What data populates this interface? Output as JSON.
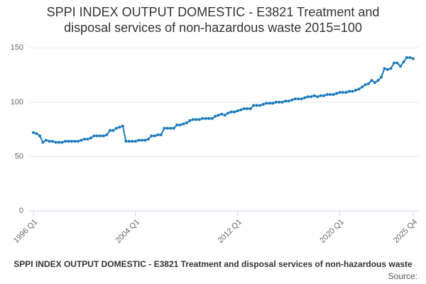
{
  "chart_data": {
    "type": "line",
    "title": "SPPI INDEX OUTPUT DOMESTIC - E3821 Treatment and disposal services of non-hazardous waste 2015=100",
    "source": "Source:",
    "categories": [
      "1996 Q1",
      null,
      null,
      null,
      null,
      null,
      null,
      null,
      null,
      null,
      null,
      null,
      null,
      null,
      null,
      null,
      null,
      null,
      null,
      null,
      null,
      null,
      null,
      null,
      null,
      null,
      null,
      null,
      null,
      null,
      null,
      null,
      "2004 Q1",
      null,
      null,
      null,
      null,
      null,
      null,
      null,
      null,
      null,
      null,
      null,
      null,
      null,
      null,
      null,
      null,
      null,
      null,
      null,
      null,
      null,
      null,
      null,
      null,
      null,
      null,
      null,
      null,
      null,
      null,
      null,
      "2012 Q1",
      null,
      null,
      null,
      null,
      null,
      null,
      null,
      null,
      null,
      null,
      null,
      null,
      null,
      null,
      null,
      null,
      null,
      null,
      null,
      null,
      null,
      null,
      null,
      null,
      null,
      null,
      null,
      null,
      null,
      null,
      null,
      "2020 Q1",
      null,
      null,
      null,
      null,
      null,
      null,
      null,
      null,
      null,
      null,
      null,
      null,
      null,
      null,
      null,
      null,
      null,
      null,
      null,
      null,
      null,
      null,
      "2025 Q4"
    ],
    "series": [
      {
        "name": "SPPI INDEX OUTPUT DOMESTIC - E3821 Treatment and disposal services of non-hazardous waste",
        "color": "#1b7bbd",
        "values": [
          72,
          71,
          69,
          63,
          65,
          64,
          64,
          63,
          63,
          63,
          64,
          64,
          64,
          64,
          64,
          65,
          66,
          66,
          67,
          69,
          69,
          69,
          69,
          70,
          74,
          74,
          76,
          77,
          78,
          64,
          64,
          64,
          64,
          65,
          65,
          65,
          66,
          69,
          69,
          70,
          70,
          76,
          76,
          76,
          76,
          79,
          79,
          80,
          81,
          83,
          84,
          84,
          84,
          85,
          85,
          85,
          85,
          87,
          88,
          89,
          88,
          90,
          91,
          91,
          92,
          93,
          94,
          94,
          94,
          97,
          97,
          97,
          98,
          99,
          99,
          99,
          100,
          100,
          100,
          101,
          101,
          102,
          103,
          103,
          103,
          104,
          105,
          105,
          106,
          105,
          106,
          106,
          107,
          107,
          107,
          108,
          109,
          109,
          109,
          110,
          110,
          111,
          112,
          114,
          116,
          117,
          120,
          118,
          120,
          123,
          131,
          130,
          131,
          136,
          136,
          133,
          137,
          141,
          141,
          140
        ]
      }
    ],
    "ylim": [
      0,
      160
    ],
    "yticks": [
      0,
      50,
      100,
      150
    ],
    "grid": true
  }
}
